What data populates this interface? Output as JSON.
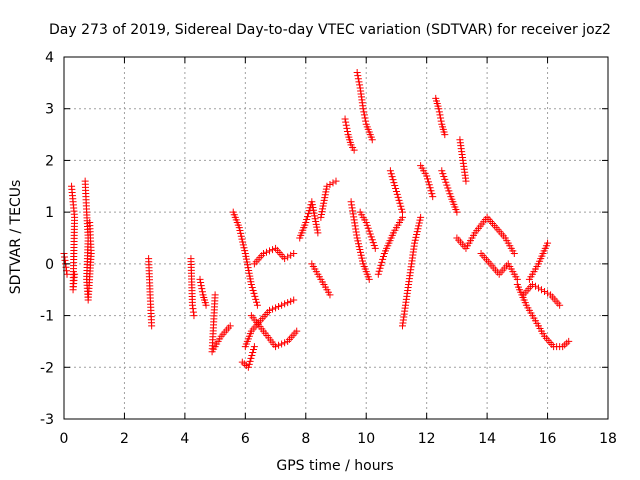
{
  "chart_data": {
    "type": "scatter",
    "title": "Day 273 of 2019, Sidereal Day-to-day VTEC variation (SDTVAR) for receiver joz2",
    "xlabel": "GPS time / hours",
    "ylabel": "SDTVAR / TECUs",
    "xlim": [
      0,
      18
    ],
    "ylim": [
      -3,
      4
    ],
    "xticks": [
      0,
      2,
      4,
      6,
      8,
      10,
      12,
      14,
      16,
      18
    ],
    "yticks": [
      -3,
      -2,
      -1,
      0,
      1,
      2,
      3,
      4
    ],
    "grid": true,
    "marker": "+",
    "series_color": "#ff0000",
    "series": [
      {
        "name": "SDTVAR",
        "segments": [
          [
            [
              0.0,
              0.2
            ],
            [
              0.05,
              0.0
            ],
            [
              0.1,
              -0.2
            ]
          ],
          [
            [
              0.25,
              1.5
            ],
            [
              0.3,
              1.2
            ],
            [
              0.35,
              0.9
            ],
            [
              0.3,
              -0.5
            ],
            [
              0.35,
              -0.2
            ]
          ],
          [
            [
              0.7,
              1.6
            ],
            [
              0.75,
              1.0
            ],
            [
              0.8,
              0.5
            ],
            [
              0.75,
              -0.3
            ],
            [
              0.8,
              -0.7
            ],
            [
              0.9,
              0.2
            ],
            [
              0.85,
              0.8
            ]
          ],
          [
            [
              2.8,
              0.1
            ],
            [
              2.85,
              -0.6
            ],
            [
              2.9,
              -1.2
            ]
          ],
          [
            [
              4.2,
              0.1
            ],
            [
              4.25,
              -0.8
            ],
            [
              4.3,
              -1.0
            ]
          ],
          [
            [
              4.5,
              -0.3
            ],
            [
              4.6,
              -0.6
            ],
            [
              4.7,
              -0.8
            ]
          ],
          [
            [
              5.0,
              -0.6
            ],
            [
              4.9,
              -1.7
            ],
            [
              5.2,
              -1.4
            ],
            [
              5.5,
              -1.2
            ]
          ],
          [
            [
              5.6,
              1.0
            ],
            [
              5.8,
              0.7
            ],
            [
              6.0,
              0.2
            ],
            [
              6.2,
              -0.4
            ],
            [
              6.4,
              -0.8
            ]
          ],
          [
            [
              6.0,
              -1.6
            ],
            [
              6.2,
              -1.3
            ],
            [
              6.5,
              -1.1
            ],
            [
              6.8,
              -0.9
            ],
            [
              7.2,
              -0.8
            ],
            [
              7.6,
              -0.7
            ]
          ],
          [
            [
              5.9,
              -1.9
            ],
            [
              6.1,
              -2.0
            ],
            [
              6.3,
              -1.6
            ]
          ],
          [
            [
              6.2,
              -1.0
            ],
            [
              6.6,
              -1.3
            ],
            [
              7.0,
              -1.6
            ],
            [
              7.4,
              -1.5
            ],
            [
              7.7,
              -1.3
            ]
          ],
          [
            [
              6.3,
              0.0
            ],
            [
              6.6,
              0.2
            ],
            [
              7.0,
              0.3
            ],
            [
              7.3,
              0.1
            ],
            [
              7.6,
              0.2
            ]
          ],
          [
            [
              7.8,
              0.5
            ],
            [
              8.0,
              0.8
            ],
            [
              8.2,
              1.2
            ],
            [
              8.4,
              0.6
            ]
          ],
          [
            [
              8.2,
              0.0
            ],
            [
              8.5,
              -0.3
            ],
            [
              8.8,
              -0.6
            ]
          ],
          [
            [
              8.5,
              0.9
            ],
            [
              8.7,
              1.5
            ],
            [
              9.0,
              1.6
            ]
          ],
          [
            [
              9.3,
              2.8
            ],
            [
              9.4,
              2.5
            ],
            [
              9.5,
              2.3
            ],
            [
              9.6,
              2.2
            ]
          ],
          [
            [
              9.7,
              3.7
            ],
            [
              9.8,
              3.4
            ],
            [
              9.9,
              3.0
            ],
            [
              10.0,
              2.7
            ],
            [
              10.2,
              2.4
            ]
          ],
          [
            [
              9.5,
              1.2
            ],
            [
              9.7,
              0.5
            ],
            [
              9.9,
              0.0
            ],
            [
              10.1,
              -0.3
            ]
          ],
          [
            [
              9.8,
              1.0
            ],
            [
              10.0,
              0.8
            ],
            [
              10.3,
              0.3
            ]
          ],
          [
            [
              10.4,
              -0.2
            ],
            [
              10.6,
              0.2
            ],
            [
              10.9,
              0.6
            ],
            [
              11.2,
              0.9
            ]
          ],
          [
            [
              10.8,
              1.8
            ],
            [
              11.0,
              1.4
            ],
            [
              11.2,
              1.0
            ]
          ],
          [
            [
              11.2,
              -1.2
            ],
            [
              11.4,
              -0.4
            ],
            [
              11.6,
              0.4
            ],
            [
              11.8,
              0.9
            ]
          ],
          [
            [
              11.8,
              1.9
            ],
            [
              12.0,
              1.7
            ],
            [
              12.2,
              1.3
            ]
          ],
          [
            [
              12.3,
              3.2
            ],
            [
              12.4,
              3.0
            ],
            [
              12.5,
              2.7
            ],
            [
              12.6,
              2.5
            ]
          ],
          [
            [
              12.5,
              1.8
            ],
            [
              12.8,
              1.3
            ],
            [
              13.0,
              1.0
            ]
          ],
          [
            [
              13.1,
              2.4
            ],
            [
              13.2,
              2.0
            ],
            [
              13.3,
              1.6
            ]
          ],
          [
            [
              13.0,
              0.5
            ],
            [
              13.3,
              0.3
            ],
            [
              13.6,
              0.6
            ],
            [
              14.0,
              0.9
            ],
            [
              14.3,
              0.7
            ],
            [
              14.6,
              0.5
            ],
            [
              14.9,
              0.2
            ]
          ],
          [
            [
              13.8,
              0.2
            ],
            [
              14.1,
              0.0
            ],
            [
              14.4,
              -0.2
            ],
            [
              14.7,
              0.0
            ],
            [
              15.0,
              -0.3
            ]
          ],
          [
            [
              15.0,
              -0.4
            ],
            [
              15.3,
              -0.8
            ],
            [
              15.6,
              -1.1
            ],
            [
              15.9,
              -1.4
            ],
            [
              16.2,
              -1.6
            ],
            [
              16.5,
              -1.6
            ],
            [
              16.7,
              -1.5
            ]
          ],
          [
            [
              15.2,
              -0.6
            ],
            [
              15.5,
              -0.4
            ],
            [
              15.8,
              -0.5
            ],
            [
              16.1,
              -0.6
            ],
            [
              16.4,
              -0.8
            ]
          ],
          [
            [
              15.4,
              -0.3
            ],
            [
              15.7,
              0.0
            ],
            [
              16.0,
              0.4
            ]
          ]
        ]
      }
    ]
  }
}
